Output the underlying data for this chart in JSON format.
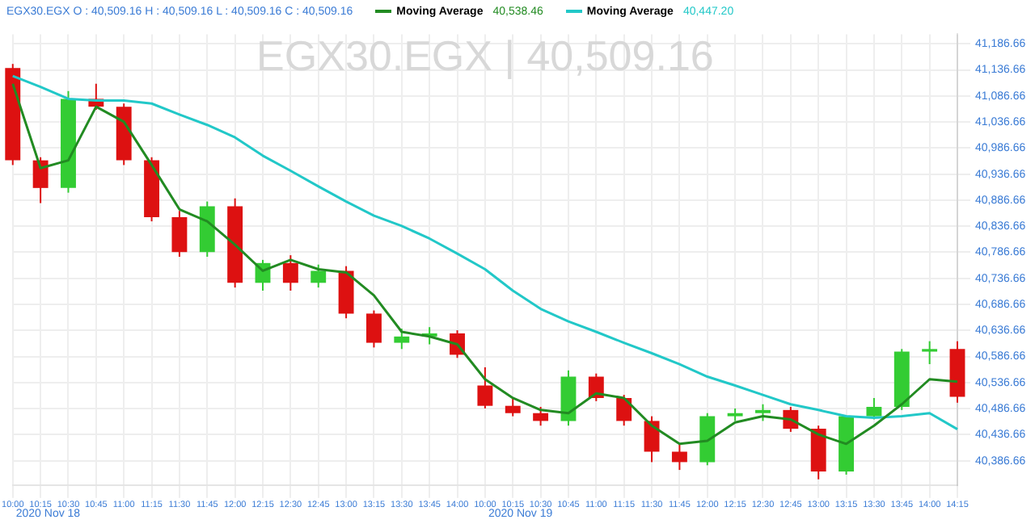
{
  "chart_data": {
    "type": "candlestick",
    "title": "EGX30.EGX | 40,509.16",
    "subtitle": "EGX30.EGX  O : 40,509.16  H : 40,509.16  L : 40,509.16  C : 40,509.16",
    "categories": [
      "10:00",
      "10:15",
      "10:30",
      "10:45",
      "11:00",
      "11:15",
      "11:30",
      "11:45",
      "12:00",
      "12:15",
      "12:30",
      "12:45",
      "13:00",
      "13:15",
      "13:30",
      "13:45",
      "14:00",
      "10:00",
      "10:15",
      "10:30",
      "10:45",
      "11:00",
      "11:15",
      "11:30",
      "11:45",
      "12:00",
      "12:15",
      "12:30",
      "12:45",
      "13:00",
      "13:15",
      "13:30",
      "13:45",
      "14:00",
      "14:15"
    ],
    "ohlc": [
      [
        41140,
        41148,
        40954,
        40963
      ],
      [
        40963,
        40969,
        40881,
        40910
      ],
      [
        40910,
        41096,
        40901,
        41081
      ],
      [
        41081,
        41110,
        41060,
        41066
      ],
      [
        41066,
        41072,
        40954,
        40963
      ],
      [
        40963,
        40969,
        40846,
        40854
      ],
      [
        40854,
        40866,
        40778,
        40787
      ],
      [
        40787,
        40884,
        40778,
        40875
      ],
      [
        40875,
        40890,
        40719,
        40728
      ],
      [
        40728,
        40772,
        40713,
        40766
      ],
      [
        40766,
        40781,
        40713,
        40728
      ],
      [
        40728,
        40763,
        40719,
        40751
      ],
      [
        40751,
        40760,
        40660,
        40669
      ],
      [
        40669,
        40675,
        40604,
        40613
      ],
      [
        40613,
        40640,
        40601,
        40625
      ],
      [
        40625,
        40643,
        40610,
        40631
      ],
      [
        40631,
        40637,
        40584,
        40590
      ],
      [
        40531,
        40566,
        40487,
        40492
      ],
      [
        40492,
        40507,
        40472,
        40478
      ],
      [
        40478,
        40490,
        40454,
        40463
      ],
      [
        40463,
        40560,
        40454,
        40548
      ],
      [
        40548,
        40554,
        40501,
        40507
      ],
      [
        40507,
        40513,
        40454,
        40463
      ],
      [
        40463,
        40472,
        40384,
        40404
      ],
      [
        40404,
        40419,
        40369,
        40384
      ],
      [
        40384,
        40478,
        40378,
        40472
      ],
      [
        40472,
        40487,
        40463,
        40478
      ],
      [
        40478,
        40495,
        40463,
        40484
      ],
      [
        40484,
        40490,
        40442,
        40448
      ],
      [
        40448,
        40454,
        40351,
        40366
      ],
      [
        40366,
        40472,
        40360,
        40472
      ],
      [
        40472,
        40507,
        40466,
        40490
      ],
      [
        40490,
        40601,
        40484,
        40596
      ],
      [
        40596,
        40616,
        40572,
        40601
      ],
      [
        40601,
        40616,
        40498,
        40509.16
      ]
    ],
    "series": [
      {
        "name": "Moving Average",
        "type": "line",
        "color": "#228b22",
        "values": [
          41110,
          40948,
          40963,
          41066,
          41037,
          40954,
          40869,
          40846,
          40801,
          40751,
          40772,
          40754,
          40748,
          40704,
          40634,
          40625,
          40610,
          40543,
          40507,
          40484,
          40478,
          40516,
          40507,
          40454,
          40419,
          40425,
          40460,
          40472,
          40466,
          40437,
          40419,
          40454,
          40495,
          40543,
          40538.46
        ]
      },
      {
        "name": "Moving Average",
        "type": "line",
        "color": "#22c8c8",
        "values": [
          41125,
          41104,
          41081,
          41078,
          41078,
          41072,
          41051,
          41031,
          41007,
          40972,
          40943,
          40913,
          40884,
          40857,
          40837,
          40813,
          40784,
          40754,
          40713,
          40678,
          40654,
          40634,
          40613,
          40593,
          40572,
          40548,
          40531,
          40513,
          40495,
          40484,
          40472,
          40469,
          40472,
          40478,
          40447.2
        ]
      }
    ],
    "annotations": [
      "2020 Nov 18",
      "2020 Nov 19",
      "40,538.46",
      "40,447.20"
    ],
    "ylim": [
      40340,
      41205
    ],
    "yticks": [
      {
        "value": 41186.66,
        "label": "41,186.66"
      },
      {
        "value": 41136.66,
        "label": "41,136.66"
      },
      {
        "value": 41086.66,
        "label": "41,086.66"
      },
      {
        "value": 41036.66,
        "label": "41,036.66"
      },
      {
        "value": 40986.66,
        "label": "40,986.66"
      },
      {
        "value": 40936.66,
        "label": "40,936.66"
      },
      {
        "value": 40886.66,
        "label": "40,886.66"
      },
      {
        "value": 40836.66,
        "label": "40,836.66"
      },
      {
        "value": 40786.66,
        "label": "40,786.66"
      },
      {
        "value": 40736.66,
        "label": "40,736.66"
      },
      {
        "value": 40686.66,
        "label": "40,686.66"
      },
      {
        "value": 40636.66,
        "label": "40,636.66"
      },
      {
        "value": 40586.66,
        "label": "40,586.66"
      },
      {
        "value": 40536.66,
        "label": "40,536.66"
      },
      {
        "value": 40486.66,
        "label": "40,486.66"
      },
      {
        "value": 40436.66,
        "label": "40,436.66"
      },
      {
        "value": 40386.66,
        "label": "40,386.66"
      }
    ],
    "grid": true,
    "legend": "top",
    "marker": "none",
    "line_style": "solid"
  }
}
